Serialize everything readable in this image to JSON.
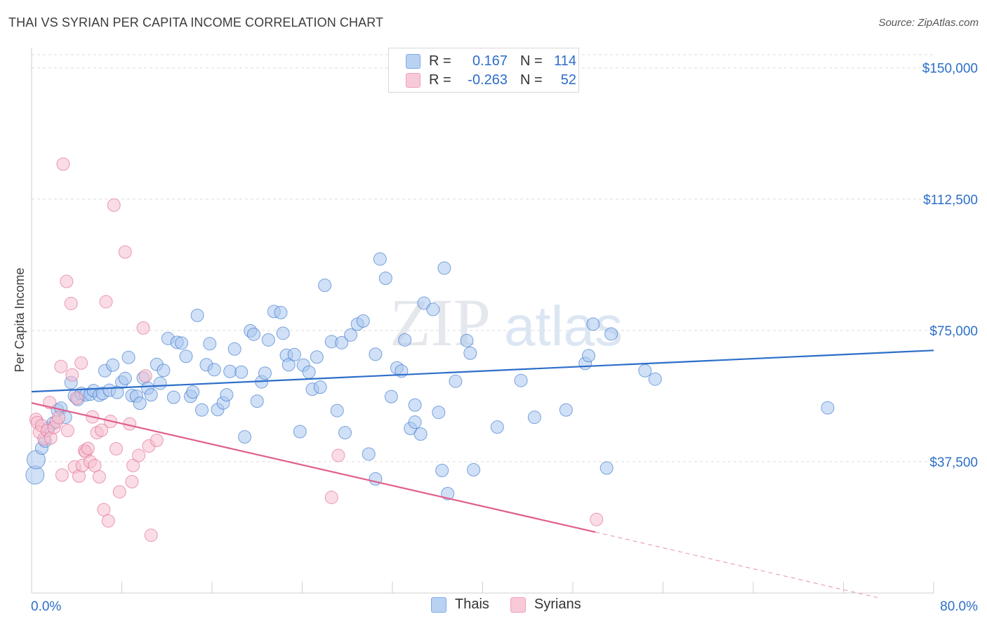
{
  "header": {
    "title": "THAI VS SYRIAN PER CAPITA INCOME CORRELATION CHART",
    "source": "Source: ZipAtlas.com"
  },
  "watermark": {
    "part1": "ZIP",
    "part2": "atlas"
  },
  "legend": {
    "rows": [
      {
        "r_label": "R =",
        "r_value": "0.167",
        "n_label": "N =",
        "n_value": "114",
        "color": "#7fa9e6"
      },
      {
        "r_label": "R =",
        "r_value": "-0.263",
        "n_label": "N =",
        "n_value": "52",
        "color": "#f2a0ba"
      }
    ]
  },
  "bottom_legend": {
    "thais": "Thais",
    "syrians": "Syrians"
  },
  "chart_data": {
    "type": "scatter",
    "ylabel": "Per Capita Income",
    "xlabel": "",
    "xlim": [
      0,
      80
    ],
    "ylim": [
      0,
      153750
    ],
    "x_tick_labels": [
      "0.0%",
      "80.0%"
    ],
    "y_tick_values": [
      37500,
      75000,
      112500,
      150000
    ],
    "y_tick_labels": [
      "$37,500",
      "$75,000",
      "$112,500",
      "$150,000"
    ],
    "grid": "horizontal dashed",
    "legend_position": "top-center",
    "series": [
      {
        "name": "Thais",
        "color": "#2d6ec9",
        "fill": "#a9c6ee",
        "trend": {
          "x": [
            0,
            80
          ],
          "y": [
            57500,
            69300
          ]
        },
        "points": [
          [
            0.3,
            33700
          ],
          [
            0.4,
            38100
          ],
          [
            0.9,
            41400
          ],
          [
            1.2,
            43400
          ],
          [
            1.5,
            47100
          ],
          [
            1.9,
            48500
          ],
          [
            2.3,
            52200
          ],
          [
            2.6,
            52800
          ],
          [
            3.0,
            50200
          ],
          [
            3.5,
            60100
          ],
          [
            3.8,
            56300
          ],
          [
            4.1,
            55300
          ],
          [
            4.4,
            57000
          ],
          [
            4.8,
            56600
          ],
          [
            5.2,
            56800
          ],
          [
            5.5,
            57800
          ],
          [
            6.0,
            56500
          ],
          [
            6.3,
            57000
          ],
          [
            6.5,
            63500
          ],
          [
            6.9,
            57900
          ],
          [
            7.2,
            65100
          ],
          [
            7.6,
            57300
          ],
          [
            8.0,
            60200
          ],
          [
            8.3,
            61300
          ],
          [
            8.6,
            67300
          ],
          [
            8.9,
            56400
          ],
          [
            9.3,
            56200
          ],
          [
            9.6,
            54200
          ],
          [
            9.9,
            61400
          ],
          [
            10.3,
            58500
          ],
          [
            10.6,
            56600
          ],
          [
            11.1,
            65300
          ],
          [
            11.4,
            59900
          ],
          [
            11.7,
            63600
          ],
          [
            12.1,
            72700
          ],
          [
            12.6,
            55900
          ],
          [
            12.9,
            71600
          ],
          [
            13.3,
            71400
          ],
          [
            13.7,
            67600
          ],
          [
            14.1,
            56200
          ],
          [
            14.3,
            57400
          ],
          [
            14.7,
            79300
          ],
          [
            15.1,
            52300
          ],
          [
            15.5,
            65200
          ],
          [
            15.8,
            71200
          ],
          [
            16.2,
            63800
          ],
          [
            16.5,
            52400
          ],
          [
            17.0,
            54300
          ],
          [
            17.3,
            56600
          ],
          [
            17.6,
            63300
          ],
          [
            18.0,
            69700
          ],
          [
            18.6,
            63100
          ],
          [
            18.9,
            44600
          ],
          [
            19.4,
            74900
          ],
          [
            19.7,
            73900
          ],
          [
            20.0,
            54800
          ],
          [
            20.4,
            60300
          ],
          [
            20.7,
            62800
          ],
          [
            21.0,
            72300
          ],
          [
            21.5,
            80400
          ],
          [
            22.1,
            80100
          ],
          [
            22.3,
            74200
          ],
          [
            22.6,
            67900
          ],
          [
            22.8,
            65200
          ],
          [
            23.3,
            68100
          ],
          [
            23.8,
            46100
          ],
          [
            24.1,
            65100
          ],
          [
            24.6,
            63100
          ],
          [
            24.9,
            58200
          ],
          [
            25.3,
            67400
          ],
          [
            25.6,
            58800
          ],
          [
            26.0,
            87900
          ],
          [
            26.6,
            71800
          ],
          [
            27.1,
            52100
          ],
          [
            27.5,
            71500
          ],
          [
            27.8,
            45800
          ],
          [
            28.3,
            73700
          ],
          [
            28.9,
            76800
          ],
          [
            29.4,
            77700
          ],
          [
            29.9,
            39700
          ],
          [
            30.5,
            68200
          ],
          [
            30.9,
            95400
          ],
          [
            30.5,
            32600
          ],
          [
            31.4,
            89900
          ],
          [
            31.9,
            56100
          ],
          [
            32.4,
            64300
          ],
          [
            32.8,
            63400
          ],
          [
            33.1,
            72300
          ],
          [
            33.6,
            47000
          ],
          [
            34.0,
            53700
          ],
          [
            34.0,
            48800
          ],
          [
            34.5,
            45400
          ],
          [
            34.8,
            82800
          ],
          [
            35.6,
            81000
          ],
          [
            36.1,
            51600
          ],
          [
            36.4,
            35000
          ],
          [
            36.6,
            92800
          ],
          [
            36.9,
            28400
          ],
          [
            37.6,
            60500
          ],
          [
            38.6,
            72100
          ],
          [
            38.9,
            68500
          ],
          [
            39.2,
            35200
          ],
          [
            41.3,
            47400
          ],
          [
            43.4,
            60700
          ],
          [
            44.6,
            50200
          ],
          [
            47.4,
            52300
          ],
          [
            49.1,
            65600
          ],
          [
            49.4,
            67800
          ],
          [
            49.8,
            76800
          ],
          [
            51.0,
            35700
          ],
          [
            51.4,
            74000
          ],
          [
            54.4,
            63500
          ],
          [
            55.3,
            61100
          ],
          [
            70.6,
            52900
          ]
        ]
      },
      {
        "name": "Syrians",
        "color": "#e0608a",
        "fill": "#f6bfd0",
        "trend": {
          "x": [
            0,
            50
          ],
          "y": [
            54300,
            17400
          ],
          "dashed_to": {
            "x": 75,
            "y": -1300
          }
        },
        "points": [
          [
            0.4,
            49600
          ],
          [
            0.5,
            48700
          ],
          [
            0.7,
            45900
          ],
          [
            0.9,
            47800
          ],
          [
            1.1,
            44000
          ],
          [
            1.4,
            46400
          ],
          [
            1.6,
            54400
          ],
          [
            1.7,
            44300
          ],
          [
            2.0,
            47300
          ],
          [
            2.2,
            48900
          ],
          [
            2.4,
            50100
          ],
          [
            2.6,
            64700
          ],
          [
            2.7,
            33700
          ],
          [
            2.8,
            122500
          ],
          [
            3.1,
            89000
          ],
          [
            3.2,
            46400
          ],
          [
            3.5,
            82700
          ],
          [
            3.6,
            62300
          ],
          [
            3.8,
            36000
          ],
          [
            4.0,
            55700
          ],
          [
            4.2,
            33400
          ],
          [
            4.4,
            65700
          ],
          [
            4.5,
            36400
          ],
          [
            4.7,
            40700
          ],
          [
            4.8,
            40300
          ],
          [
            5.0,
            41300
          ],
          [
            5.2,
            37500
          ],
          [
            5.4,
            50300
          ],
          [
            5.6,
            36400
          ],
          [
            5.8,
            45800
          ],
          [
            6.0,
            33200
          ],
          [
            6.2,
            46500
          ],
          [
            6.4,
            23800
          ],
          [
            6.6,
            83200
          ],
          [
            6.8,
            20600
          ],
          [
            7.0,
            49000
          ],
          [
            7.3,
            110800
          ],
          [
            7.5,
            41200
          ],
          [
            7.8,
            28900
          ],
          [
            8.3,
            97400
          ],
          [
            8.7,
            48300
          ],
          [
            8.9,
            31800
          ],
          [
            9.0,
            36400
          ],
          [
            9.5,
            39300
          ],
          [
            9.9,
            75700
          ],
          [
            10.1,
            62000
          ],
          [
            10.4,
            42000
          ],
          [
            10.6,
            16500
          ],
          [
            11.1,
            43600
          ],
          [
            26.6,
            27300
          ],
          [
            27.2,
            39300
          ],
          [
            50.1,
            21000
          ]
        ]
      }
    ]
  }
}
